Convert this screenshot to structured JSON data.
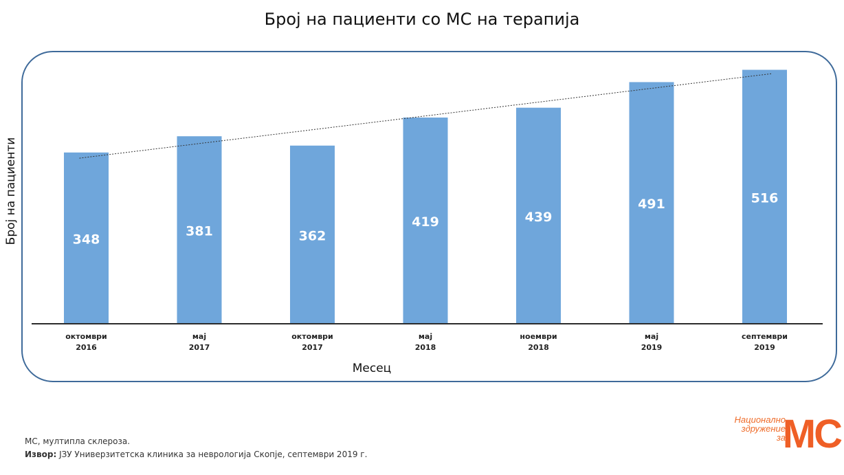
{
  "title": "Број на пациенти со МС на терапија",
  "footnote": "МС, мултипла склероза.",
  "source_label": "Извор:",
  "source_text": " ЈЗУ Универзитетска клиника за неврологија Скопје, септември 2019 г.",
  "logo": {
    "line1": "Национално",
    "line2": "здружение",
    "line3": "за",
    "mark": "МС"
  },
  "colors": {
    "bar": "#6fa6db",
    "frame": "#3e6a9a",
    "axis": "#2b2b2b",
    "logo": "#ef5f26"
  },
  "chart_data": {
    "type": "bar",
    "title": "Број на пациенти со МС на терапија",
    "xlabel": "Месец",
    "ylabel": "Број на пациенти",
    "categories": [
      [
        "октомври",
        "2016"
      ],
      [
        "мај",
        "2017"
      ],
      [
        "октомври",
        "2017"
      ],
      [
        "мај",
        "2018"
      ],
      [
        "ноември",
        "2018"
      ],
      [
        "мај",
        "2019"
      ],
      [
        "септември",
        "2019"
      ]
    ],
    "values": [
      348,
      381,
      362,
      419,
      439,
      491,
      516
    ],
    "ylim": [
      0,
      540
    ],
    "grid": false,
    "trendline": "linear, dotted",
    "data_labels": true
  }
}
